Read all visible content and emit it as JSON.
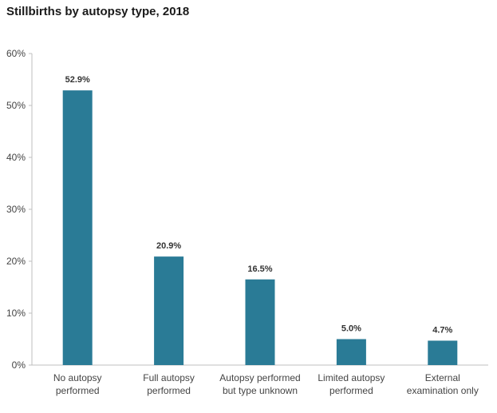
{
  "chart_data": {
    "type": "bar",
    "title": "Stillbirths by autopsy type, 2018",
    "categories": [
      [
        "No autopsy",
        "performed"
      ],
      [
        "Full autopsy",
        "performed"
      ],
      [
        "Autopsy performed",
        "but type unknown"
      ],
      [
        "Limited autopsy",
        "performed"
      ],
      [
        "External",
        "examination only"
      ]
    ],
    "values": [
      52.9,
      20.9,
      16.5,
      5.0,
      4.7
    ],
    "value_labels": [
      "52.9%",
      "20.9%",
      "16.5%",
      "5.0%",
      "4.7%"
    ],
    "y_ticks": [
      0,
      10,
      20,
      30,
      40,
      50,
      60
    ],
    "y_tick_labels": [
      "0%",
      "10%",
      "20%",
      "30%",
      "40%",
      "50%",
      "60%"
    ],
    "ylim": [
      0,
      60
    ],
    "xlabel": "",
    "ylabel": "",
    "grid": false,
    "bar_color": "#2a7b96"
  }
}
